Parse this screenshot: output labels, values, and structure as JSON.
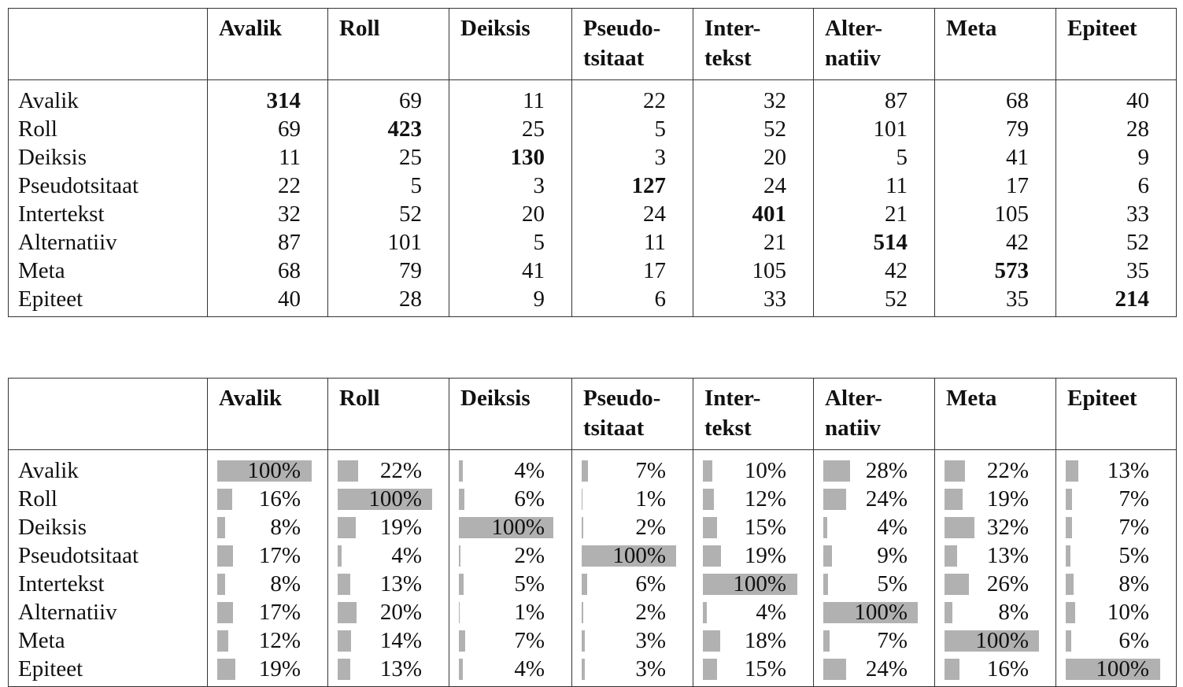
{
  "table1": {
    "columns": [
      "Avalik",
      "Roll",
      "Deiksis",
      "Pseudo-\ntsitaat",
      "Inter-\ntekst",
      "Alter-\nnatiiv",
      "Meta",
      "Epiteet"
    ],
    "rows": [
      {
        "label": "Avalik",
        "values": [
          314,
          69,
          11,
          22,
          32,
          87,
          68,
          40
        ]
      },
      {
        "label": "Roll",
        "values": [
          69,
          423,
          25,
          5,
          52,
          101,
          79,
          28
        ]
      },
      {
        "label": "Deiksis",
        "values": [
          11,
          25,
          130,
          3,
          20,
          5,
          41,
          9
        ]
      },
      {
        "label": "Pseudotsitaat",
        "values": [
          22,
          5,
          3,
          127,
          24,
          11,
          17,
          6
        ]
      },
      {
        "label": "Intertekst",
        "values": [
          32,
          52,
          20,
          24,
          401,
          21,
          105,
          33
        ]
      },
      {
        "label": "Alternatiiv",
        "values": [
          87,
          101,
          5,
          11,
          21,
          514,
          42,
          52
        ]
      },
      {
        "label": "Meta",
        "values": [
          68,
          79,
          41,
          17,
          105,
          42,
          573,
          35
        ]
      },
      {
        "label": "Epiteet",
        "values": [
          40,
          28,
          9,
          6,
          33,
          52,
          35,
          214
        ]
      }
    ]
  },
  "table2": {
    "columns": [
      "Avalik",
      "Roll",
      "Deiksis",
      "Pseudo-\ntsitaat",
      "Inter-\ntekst",
      "Alter-\nnatiiv",
      "Meta",
      "Epiteet"
    ],
    "rows": [
      {
        "label": "Avalik",
        "values": [
          {
            "value": 100,
            "label": "100%"
          },
          {
            "value": 22,
            "label": "22%"
          },
          {
            "value": 4,
            "label": "4%"
          },
          {
            "value": 7,
            "label": "7%"
          },
          {
            "value": 10,
            "label": "10%"
          },
          {
            "value": 28,
            "label": "28%"
          },
          {
            "value": 22,
            "label": "22%"
          },
          {
            "value": 13,
            "label": "13%"
          }
        ]
      },
      {
        "label": "Roll",
        "values": [
          {
            "value": 16,
            "label": "16%"
          },
          {
            "value": 100,
            "label": "100%"
          },
          {
            "value": 6,
            "label": "6%"
          },
          {
            "value": 1,
            "label": "1%"
          },
          {
            "value": 12,
            "label": "12%"
          },
          {
            "value": 24,
            "label": "24%"
          },
          {
            "value": 19,
            "label": "19%"
          },
          {
            "value": 7,
            "label": "7%"
          }
        ]
      },
      {
        "label": "Deiksis",
        "values": [
          {
            "value": 8,
            "label": "8%"
          },
          {
            "value": 19,
            "label": "19%"
          },
          {
            "value": 100,
            "label": "100%"
          },
          {
            "value": 2,
            "label": "2%"
          },
          {
            "value": 15,
            "label": "15%"
          },
          {
            "value": 4,
            "label": "4%"
          },
          {
            "value": 32,
            "label": "32%"
          },
          {
            "value": 7,
            "label": "7%"
          }
        ]
      },
      {
        "label": "Pseudotsitaat",
        "values": [
          {
            "value": 17,
            "label": "17%"
          },
          {
            "value": 4,
            "label": "4%"
          },
          {
            "value": 2,
            "label": "2%"
          },
          {
            "value": 100,
            "label": "100%"
          },
          {
            "value": 19,
            "label": "19%"
          },
          {
            "value": 9,
            "label": "9%"
          },
          {
            "value": 13,
            "label": "13%"
          },
          {
            "value": 5,
            "label": "5%"
          }
        ]
      },
      {
        "label": "Intertekst",
        "values": [
          {
            "value": 8,
            "label": "8%"
          },
          {
            "value": 13,
            "label": "13%"
          },
          {
            "value": 5,
            "label": "5%"
          },
          {
            "value": 6,
            "label": "6%"
          },
          {
            "value": 100,
            "label": "100%"
          },
          {
            "value": 5,
            "label": "5%"
          },
          {
            "value": 26,
            "label": "26%"
          },
          {
            "value": 8,
            "label": "8%"
          }
        ]
      },
      {
        "label": "Alternatiiv",
        "values": [
          {
            "value": 17,
            "label": "17%"
          },
          {
            "value": 20,
            "label": "20%"
          },
          {
            "value": 1,
            "label": "1%"
          },
          {
            "value": 2,
            "label": "2%"
          },
          {
            "value": 4,
            "label": "4%"
          },
          {
            "value": 100,
            "label": "100%"
          },
          {
            "value": 8,
            "label": "8%"
          },
          {
            "value": 10,
            "label": "10%"
          }
        ]
      },
      {
        "label": "Meta",
        "values": [
          {
            "value": 12,
            "label": "12%"
          },
          {
            "value": 14,
            "label": "14%"
          },
          {
            "value": 7,
            "label": "7%"
          },
          {
            "value": 3,
            "label": "3%"
          },
          {
            "value": 18,
            "label": "18%"
          },
          {
            "value": 7,
            "label": "7%"
          },
          {
            "value": 100,
            "label": "100%"
          },
          {
            "value": 6,
            "label": "6%"
          }
        ]
      },
      {
        "label": "Epiteet",
        "values": [
          {
            "value": 19,
            "label": "19%"
          },
          {
            "value": 13,
            "label": "13%"
          },
          {
            "value": 4,
            "label": "4%"
          },
          {
            "value": 3,
            "label": "3%"
          },
          {
            "value": 15,
            "label": "15%"
          },
          {
            "value": 24,
            "label": "24%"
          },
          {
            "value": 16,
            "label": "16%"
          },
          {
            "value": 100,
            "label": "100%"
          }
        ]
      }
    ]
  }
}
